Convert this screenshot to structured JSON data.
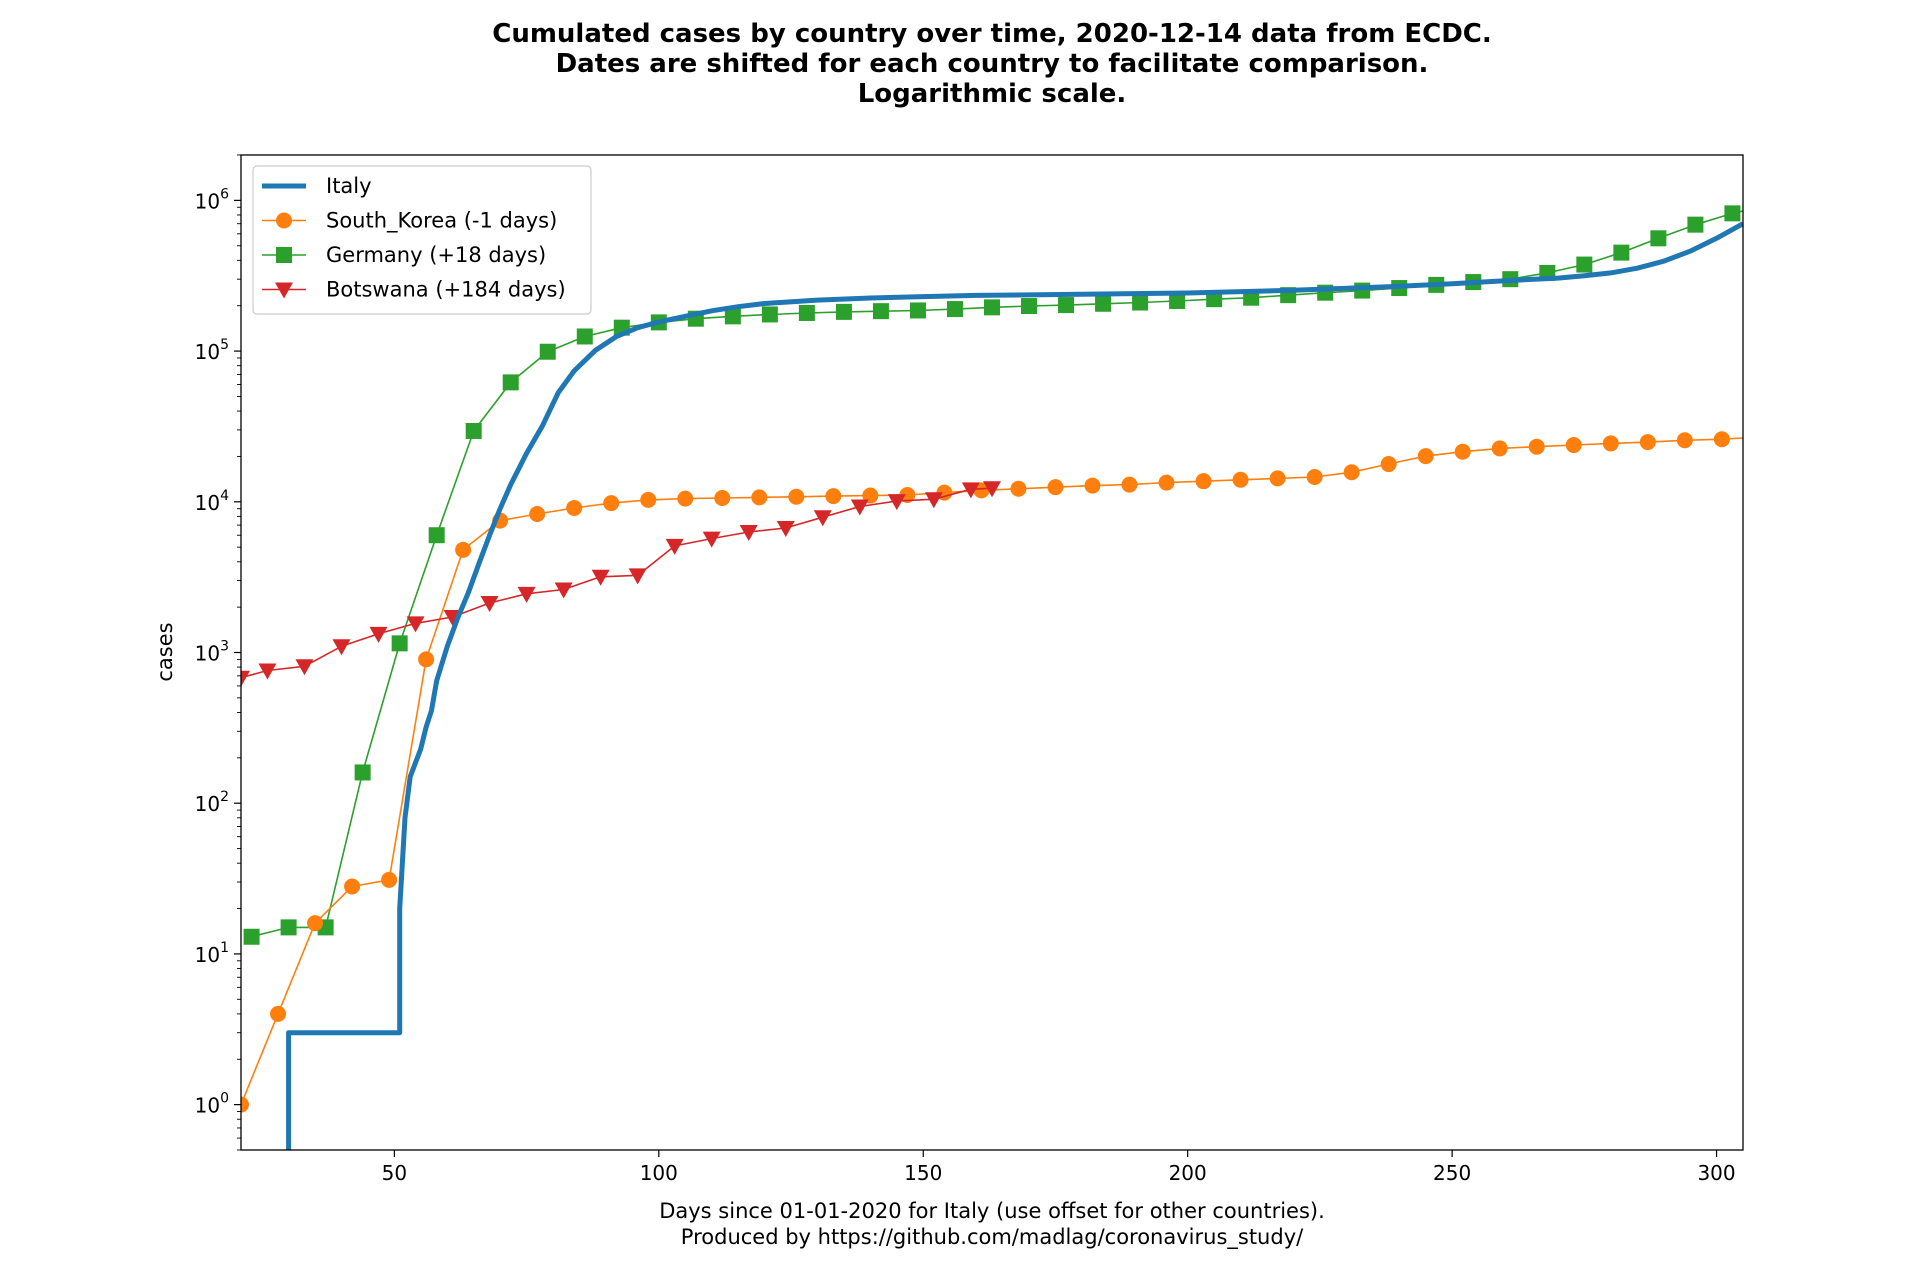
{
  "chart_data": {
    "type": "line",
    "title": [
      "Cumulated cases by country over time, 2020-12-14 data from ECDC.",
      "Dates are shifted for each country to facilitate comparison.",
      "Logarithmic scale."
    ],
    "xlabel": [
      "Days since 01-01-2020 for Italy (use offset for other countries).",
      "Produced by https://github.com/madlag/coronavirus_study/"
    ],
    "ylabel": "cases",
    "yscale": "log",
    "xlim": [
      21,
      305
    ],
    "ylim": [
      0.5,
      2000000
    ],
    "xticks": [
      50,
      100,
      150,
      200,
      250,
      300
    ],
    "xtick_labels": [
      "50",
      "100",
      "150",
      "200",
      "250",
      "300"
    ],
    "yticks": [
      1,
      10,
      100,
      1000,
      10000,
      100000,
      1000000
    ],
    "ytick_labels": [
      {
        "base": "10",
        "exp": "0"
      },
      {
        "base": "10",
        "exp": "1"
      },
      {
        "base": "10",
        "exp": "2"
      },
      {
        "base": "10",
        "exp": "3"
      },
      {
        "base": "10",
        "exp": "4"
      },
      {
        "base": "10",
        "exp": "5"
      },
      {
        "base": "10",
        "exp": "6"
      }
    ],
    "grid": false,
    "legend_position": "top-left",
    "series": [
      {
        "name": "Italy",
        "color": "#1f77b4",
        "marker": "none",
        "x": [
          30,
          30,
          51,
          51,
          52,
          53,
          55,
          56,
          57,
          58,
          60,
          62,
          64,
          66,
          68,
          70,
          72,
          75,
          78,
          81,
          84,
          88,
          92,
          96,
          100,
          105,
          110,
          115,
          120,
          130,
          140,
          150,
          160,
          180,
          200,
          220,
          240,
          250,
          260,
          270,
          275,
          280,
          285,
          290,
          295,
          300,
          305
        ],
        "y": [
          0.5,
          3,
          3,
          20,
          80,
          150,
          230,
          320,
          410,
          650,
          1100,
          1700,
          2500,
          3900,
          6000,
          9000,
          13000,
          21000,
          32000,
          53000,
          74000,
          101000,
          125000,
          143000,
          156000,
          170000,
          185000,
          197000,
          207000,
          218000,
          225000,
          230000,
          234000,
          238000,
          243000,
          253000,
          269000,
          280000,
          293000,
          305000,
          316000,
          330000,
          355000,
          395000,
          460000,
          560000,
          700000
        ]
      },
      {
        "name": "South_Korea (-1 days)",
        "color": "#ff7f0e",
        "marker": "circle",
        "x": [
          21,
          28,
          35,
          42,
          49,
          56,
          63,
          70,
          77,
          84,
          91,
          98,
          105,
          112,
          119,
          126,
          133,
          140,
          147,
          154,
          161,
          168,
          175,
          182,
          189,
          196,
          203,
          210,
          217,
          224,
          231,
          238,
          245,
          252,
          259,
          266,
          273,
          280,
          287,
          294,
          301,
          305
        ],
        "y": [
          1,
          4,
          16,
          28,
          31,
          900,
          4800,
          7500,
          8300,
          9100,
          9800,
          10300,
          10500,
          10600,
          10700,
          10800,
          10900,
          11000,
          11100,
          11500,
          11900,
          12200,
          12500,
          12800,
          13000,
          13400,
          13700,
          14000,
          14300,
          14600,
          15700,
          17800,
          20100,
          21500,
          22600,
          23200,
          23800,
          24400,
          24900,
          25600,
          26000,
          26500
        ]
      },
      {
        "name": "Germany (+18 days)",
        "color": "#2ca02c",
        "marker": "square",
        "x": [
          23,
          30,
          37,
          44,
          51,
          58,
          65,
          72,
          79,
          86,
          93,
          100,
          107,
          114,
          121,
          128,
          135,
          142,
          149,
          156,
          163,
          170,
          177,
          184,
          191,
          198,
          205,
          212,
          219,
          226,
          233,
          240,
          247,
          254,
          261,
          268,
          275,
          282,
          289,
          296,
          303,
          305
        ],
        "y": [
          13,
          15,
          15,
          160,
          1150,
          6000,
          29500,
          62000,
          99000,
          125000,
          143000,
          155000,
          164000,
          170000,
          175000,
          179000,
          182000,
          184000,
          186000,
          190000,
          195000,
          199000,
          202000,
          206000,
          210000,
          215000,
          221000,
          226000,
          235000,
          244000,
          252000,
          262000,
          275000,
          287000,
          300000,
          330000,
          375000,
          450000,
          560000,
          690000,
          820000,
          850000
        ]
      },
      {
        "name": "Botswana (+184 days)",
        "color": "#d62728",
        "marker": "triangle-down",
        "x": [
          21,
          26,
          33,
          40,
          47,
          54,
          61,
          68,
          75,
          82,
          89,
          96,
          103,
          110,
          117,
          124,
          131,
          138,
          145,
          152,
          159,
          163
        ],
        "y": [
          680,
          760,
          810,
          1100,
          1330,
          1560,
          1720,
          2130,
          2450,
          2620,
          3180,
          3250,
          5100,
          5700,
          6300,
          6700,
          7900,
          9300,
          10100,
          10400,
          12100,
          12300
        ]
      }
    ]
  }
}
